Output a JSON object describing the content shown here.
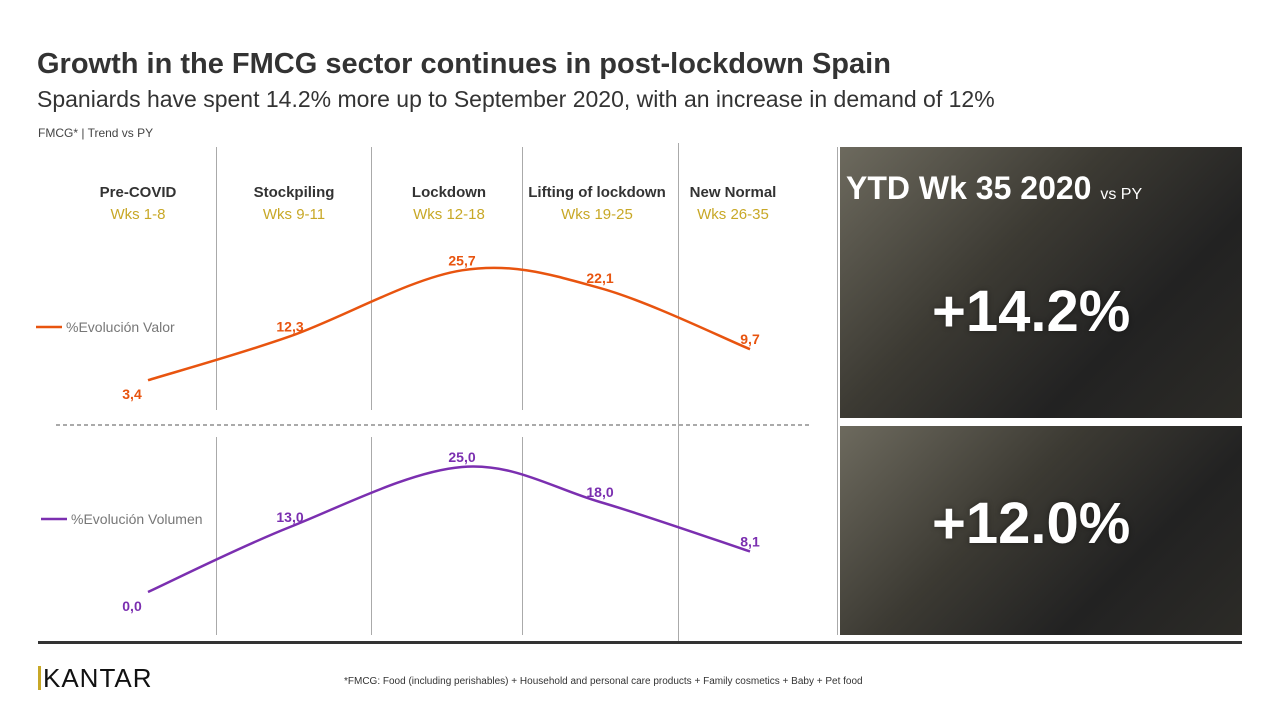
{
  "title": "Growth in the FMCG sector continues in post-lockdown Spain",
  "subtitle": "Spaniards have spent 14.2% more up to September 2020, with an increase in demand of 12%",
  "note": "FMCG* | Trend  vs PY",
  "kpis": {
    "heading": "YTD Wk 35 2020",
    "heading_suffix": "vs PY",
    "value": "+14.2%",
    "volume": "+12.0%"
  },
  "footer": "*FMCG:  Food (including perishables) + Household and personal care products + Family  cosmetics + Baby +  Pet  food",
  "logo": "KANTAR",
  "chart_data": {
    "type": "line",
    "categories": [
      {
        "name": "Pre-COVID",
        "weeks": "Wks 1-8"
      },
      {
        "name": "Stockpiling",
        "weeks": "Wks 9-11"
      },
      {
        "name": "Lockdown",
        "weeks": "Wks 12-18"
      },
      {
        "name": "Lifting of lockdown",
        "weeks": "Wks 19-25"
      },
      {
        "name": "New Normal",
        "weeks": "Wks 26-35"
      }
    ],
    "series": [
      {
        "name": "%Evolución Valor",
        "values": [
          3.4,
          12.3,
          25.7,
          22.1,
          9.7
        ],
        "labels": [
          "3,4",
          "12,3",
          "25,7",
          "22,1",
          "9,7"
        ],
        "color": "#e8540f"
      },
      {
        "name": "%Evolución Volumen",
        "values": [
          0.0,
          13.0,
          25.0,
          18.0,
          8.1
        ],
        "labels": [
          "0,0",
          "13,0",
          "25,0",
          "18,0",
          "8,1"
        ],
        "color": "#7b2fb0"
      }
    ]
  }
}
